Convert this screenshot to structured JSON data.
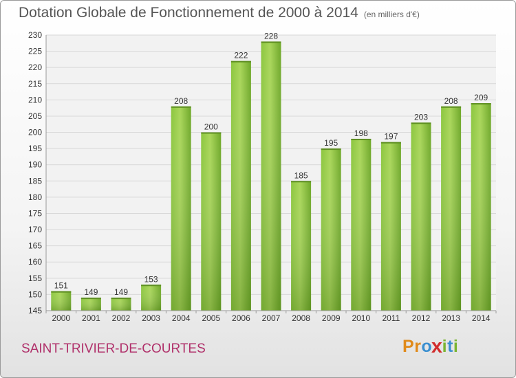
{
  "chart_data": {
    "type": "bar",
    "title": "Dotation Globale de Fonctionnement de 2000 à 2014",
    "subtitle": "(en milliers d'€)",
    "categories": [
      "2000",
      "2001",
      "2002",
      "2003",
      "2004",
      "2005",
      "2006",
      "2007",
      "2008",
      "2009",
      "2010",
      "2011",
      "2012",
      "2013",
      "2014"
    ],
    "values": [
      151,
      149,
      149,
      153,
      208,
      200,
      222,
      228,
      185,
      195,
      198,
      197,
      203,
      208,
      209
    ],
    "ylim": [
      145,
      230
    ],
    "yticks": [
      145,
      150,
      155,
      160,
      165,
      170,
      175,
      180,
      185,
      190,
      195,
      200,
      205,
      210,
      215,
      220,
      225,
      230
    ],
    "grid": true,
    "bar_color": "#7ab532"
  },
  "footer": {
    "commune": "SAINT-TRIVIER-DE-COURTES",
    "logo_letters": [
      "P",
      "r",
      "o",
      "x",
      "i",
      "t",
      "i"
    ],
    "logo_colors": [
      "#e08a1a",
      "#e08a1a",
      "#3a8fd0",
      "#d12c2c",
      "#7ab532",
      "#3a8fd0",
      "#7ab532"
    ]
  }
}
